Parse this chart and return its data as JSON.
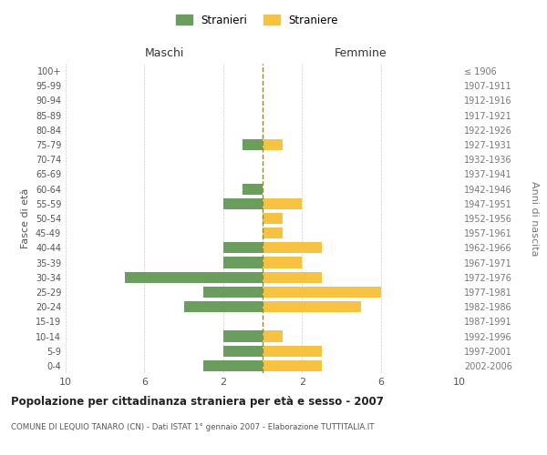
{
  "age_groups": [
    "0-4",
    "5-9",
    "10-14",
    "15-19",
    "20-24",
    "25-29",
    "30-34",
    "35-39",
    "40-44",
    "45-49",
    "50-54",
    "55-59",
    "60-64",
    "65-69",
    "70-74",
    "75-79",
    "80-84",
    "85-89",
    "90-94",
    "95-99",
    "100+"
  ],
  "birth_years": [
    "2002-2006",
    "1997-2001",
    "1992-1996",
    "1987-1991",
    "1982-1986",
    "1977-1981",
    "1972-1976",
    "1967-1971",
    "1962-1966",
    "1957-1961",
    "1952-1956",
    "1947-1951",
    "1942-1946",
    "1937-1941",
    "1932-1936",
    "1927-1931",
    "1922-1926",
    "1917-1921",
    "1912-1916",
    "1907-1911",
    "≤ 1906"
  ],
  "maschi": [
    3,
    2,
    2,
    0,
    4,
    3,
    7,
    2,
    2,
    0,
    0,
    2,
    1,
    0,
    0,
    1,
    0,
    0,
    0,
    0,
    0
  ],
  "femmine": [
    3,
    3,
    1,
    0,
    5,
    6,
    3,
    2,
    3,
    1,
    1,
    2,
    0,
    0,
    0,
    1,
    0,
    0,
    0,
    0,
    0
  ],
  "male_color": "#6b9e5e",
  "female_color": "#f5c242",
  "center_line_color": "#8b8b3a",
  "title": "Popolazione per cittadinanza straniera per età e sesso - 2007",
  "subtitle": "COMUNE DI LEQUIO TANARO (CN) - Dati ISTAT 1° gennaio 2007 - Elaborazione TUTTITALIA.IT",
  "xlabel_left": "Maschi",
  "xlabel_right": "Femmine",
  "ylabel_left": "Fasce di età",
  "ylabel_right": "Anni di nascita",
  "legend_male": "Stranieri",
  "legend_female": "Straniere",
  "xlim": 10,
  "background_color": "#ffffff",
  "grid_color": "#cccccc"
}
